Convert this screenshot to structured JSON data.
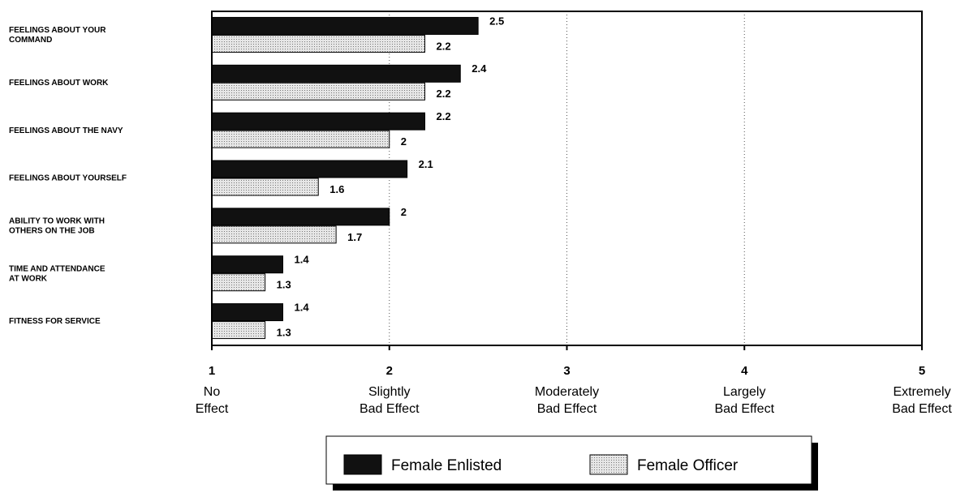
{
  "chart_data": {
    "type": "hbar",
    "categories": [
      [
        "FEELINGS ABOUT YOUR",
        "COMMAND"
      ],
      [
        "FEELINGS ABOUT WORK"
      ],
      [
        "FEELINGS ABOUT THE NAVY"
      ],
      [
        "FEELINGS ABOUT YOURSELF"
      ],
      [
        "ABILITY TO WORK WITH",
        "OTHERS ON THE JOB"
      ],
      [
        "TIME AND ATTENDANCE",
        "AT WORK"
      ],
      [
        "FITNESS FOR SERVICE"
      ]
    ],
    "series": [
      {
        "name": "Female Enlisted",
        "color": "#111111",
        "values": [
          2.5,
          2.4,
          2.2,
          2.1,
          2,
          1.4,
          1.4
        ]
      },
      {
        "name": "Female Officer",
        "color": "#d8d8d8",
        "values": [
          2.2,
          2.2,
          2,
          1.6,
          1.7,
          1.3,
          1.3
        ]
      }
    ],
    "xlim": [
      1,
      5
    ],
    "xticks": [
      1,
      2,
      3,
      4,
      5
    ],
    "xtick_descriptions": [
      [
        "No",
        "Effect"
      ],
      [
        "Slightly",
        "Bad Effect"
      ],
      [
        "Moderately",
        "Bad Effect"
      ],
      [
        "Largely",
        "Bad Effect"
      ],
      [
        "Extremely",
        "Bad Effect"
      ]
    ],
    "grid": true,
    "legend": "bottom"
  }
}
